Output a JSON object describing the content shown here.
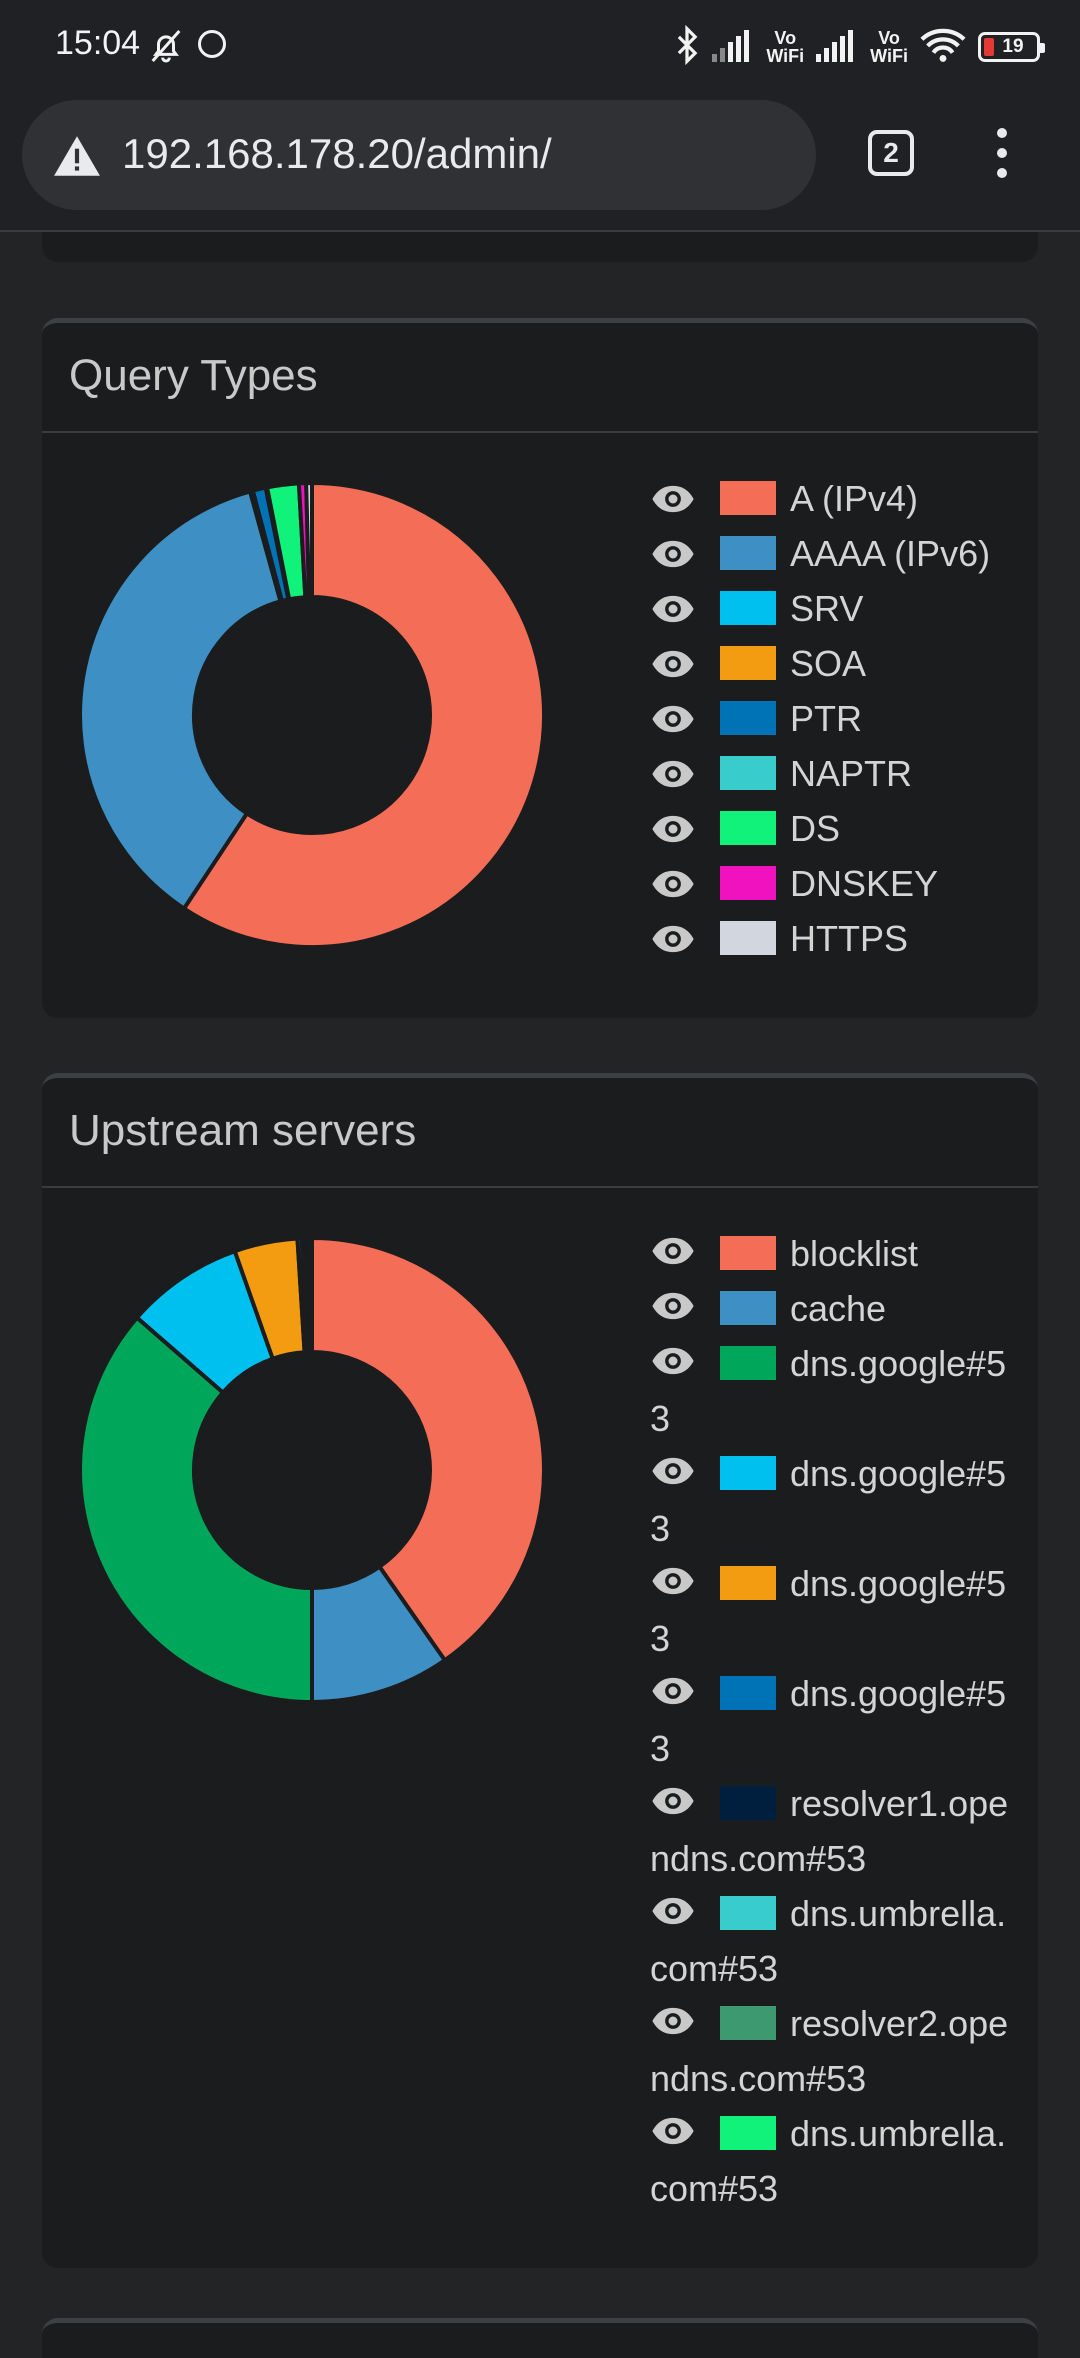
{
  "status_bar": {
    "time": "15:04",
    "vowifi_top": "Vo",
    "vowifi_bottom": "WiFi",
    "battery": "19"
  },
  "browser": {
    "url": "192.168.178.20/admin/",
    "tab_count": "2"
  },
  "query_types": {
    "title": "Query Types",
    "legend": [
      {
        "label": "A (IPv4)",
        "color": "#f46d57"
      },
      {
        "label": "AAAA (IPv6)",
        "color": "#3d8fc4"
      },
      {
        "label": "SRV",
        "color": "#00c0ef"
      },
      {
        "label": "SOA",
        "color": "#f39c12"
      },
      {
        "label": "PTR",
        "color": "#0073b7"
      },
      {
        "label": "NAPTR",
        "color": "#39cccc"
      },
      {
        "label": "DS",
        "color": "#10f27a"
      },
      {
        "label": "DNSKEY",
        "color": "#f012be"
      },
      {
        "label": "HTTPS",
        "color": "#d2d6de"
      }
    ]
  },
  "upstream_servers": {
    "title": "Upstream servers",
    "legend": [
      {
        "label": "blocklist",
        "color": "#f46d57"
      },
      {
        "label": "cache",
        "color": "#3d8fc4"
      },
      {
        "label": "dns.google#53",
        "color": "#00a65a"
      },
      {
        "label": "dns.google#53",
        "color": "#00c0ef"
      },
      {
        "label": "dns.google#53",
        "color": "#f39c12"
      },
      {
        "label": "dns.google#53",
        "color": "#0073b7"
      },
      {
        "label": "resolver1.opendns.com#53",
        "color": "#001f3f"
      },
      {
        "label": "dns.umbrella.com#53",
        "color": "#39cccc"
      },
      {
        "label": "resolver2.opendns.com#53",
        "color": "#3d9970"
      },
      {
        "label": "dns.umbrella.com#53",
        "color": "#10f27a"
      }
    ]
  },
  "chart_data": [
    {
      "type": "pie",
      "title": "Query Types",
      "categories": [
        "A (IPv4)",
        "AAAA (IPv6)",
        "SRV",
        "SOA",
        "PTR",
        "NAPTR",
        "DS",
        "DNSKEY",
        "HTTPS"
      ],
      "values": [
        59.3,
        36.4,
        0.1,
        0.1,
        0.9,
        0.1,
        2.2,
        0.5,
        0.4
      ],
      "colors": [
        "#f46d57",
        "#3d8fc4",
        "#00c0ef",
        "#f39c12",
        "#0073b7",
        "#39cccc",
        "#10f27a",
        "#f012be",
        "#d2d6de"
      ]
    },
    {
      "type": "pie",
      "title": "Upstream servers",
      "categories": [
        "blocklist",
        "cache",
        "dns.google#53",
        "dns.google#53",
        "dns.google#53",
        "dns.google#53",
        "resolver1.opendns.com#53",
        "dns.umbrella.com#53",
        "resolver2.opendns.com#53",
        "dns.umbrella.com#53"
      ],
      "values": [
        40.3,
        9.7,
        36.4,
        8.2,
        4.4,
        0.3,
        0.3,
        0.1,
        0.1,
        0.2
      ],
      "colors": [
        "#f46d57",
        "#3d8fc4",
        "#00a65a",
        "#00c0ef",
        "#f39c12",
        "#0073b7",
        "#001f3f",
        "#39cccc",
        "#3d9970",
        "#10f27a"
      ]
    }
  ]
}
